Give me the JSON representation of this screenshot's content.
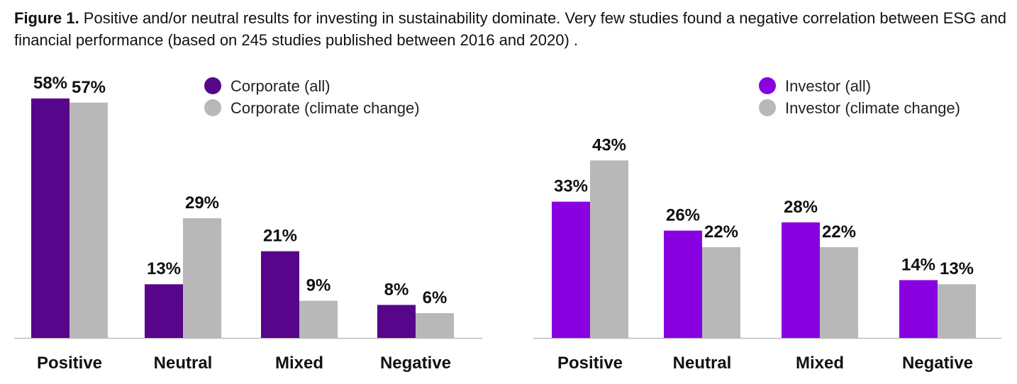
{
  "caption": {
    "bold": "Figure 1.",
    "text": " Positive and/or neutral results for investing in sustainability dominate.  Very few studies found a negative correlation between ESG and financial performance (based on 245 studies published between 2016 and 2020) ."
  },
  "chart_data": [
    {
      "type": "bar",
      "categories": [
        "Positive",
        "Neutral",
        "Mixed",
        "Negative"
      ],
      "series": [
        {
          "name": "Corporate (all)",
          "values": [
            58,
            13,
            21,
            8
          ],
          "color": "#57068c"
        },
        {
          "name": "Corporate (climate change)",
          "values": [
            57,
            29,
            9,
            6
          ],
          "color": "#b8b8b8"
        }
      ],
      "value_suffix": "%",
      "ylim": [
        0,
        58
      ],
      "grid": false,
      "legend": "top-right"
    },
    {
      "type": "bar",
      "categories": [
        "Positive",
        "Neutral",
        "Mixed",
        "Negative"
      ],
      "series": [
        {
          "name": "Investor (all)",
          "values": [
            33,
            26,
            28,
            14
          ],
          "color": "#8900e1"
        },
        {
          "name": "Investor (climate change)",
          "values": [
            43,
            22,
            22,
            13
          ],
          "color": "#b8b8b8"
        }
      ],
      "value_suffix": "%",
      "ylim": [
        0,
        58
      ],
      "grid": false,
      "legend": "top-right"
    }
  ]
}
